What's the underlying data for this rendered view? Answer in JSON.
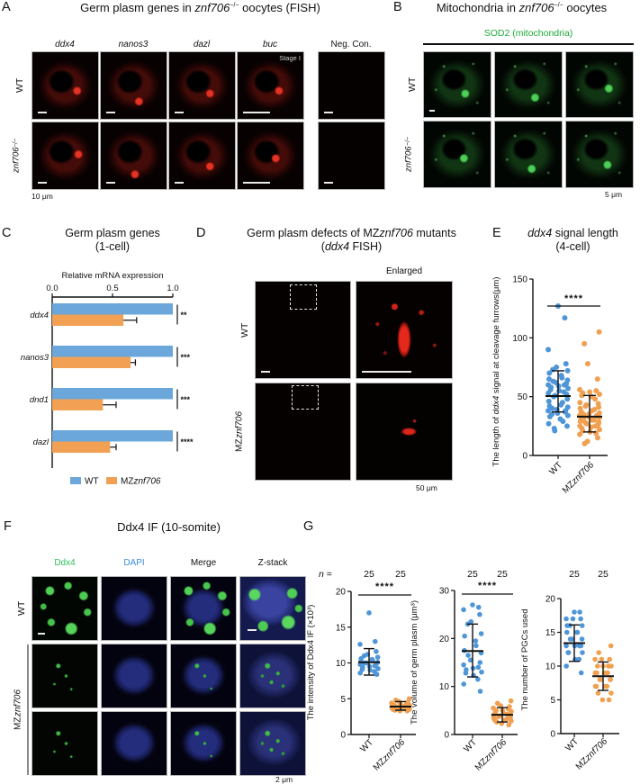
{
  "colors": {
    "wt_blue": "#6BA7DB",
    "mz_orange": "#F2A154",
    "point_blue": "#4F96D8",
    "point_orange": "#F0A050",
    "green_label": "#1FA83C",
    "dapi_label": "#3A8FDE"
  },
  "panel_a": {
    "label": "A",
    "title_parts": [
      "Germ plasm genes in ",
      "znf706",
      "−/−",
      " oocytes (FISH)"
    ],
    "col_labels": [
      "ddx4",
      "nanos3",
      "dazl",
      "buc",
      "Neg. Con."
    ],
    "row_labels": {
      "wt": "WT",
      "mut": [
        "znf706",
        "−/−"
      ]
    },
    "stage": "Stage I",
    "scale": "10 μm"
  },
  "panel_b": {
    "label": "B",
    "title_parts": [
      "Mitochondria in ",
      "znf706",
      "−/−",
      " oocytes"
    ],
    "header": "SOD2 (mitochondria)",
    "row_labels": {
      "wt": "WT",
      "mut": [
        "znf706",
        "−/−"
      ]
    },
    "scale": "5 μm"
  },
  "panel_c": {
    "label": "C"
  },
  "panel_d": {
    "label": "D",
    "title1_parts": [
      "Germ plasm defects of MZ",
      "znf706",
      " mutants"
    ],
    "title2_parts": [
      "(",
      "ddx4",
      " FISH)"
    ],
    "enlarged": "Enlarged",
    "row_labels": {
      "wt": "WT",
      "mut": [
        "MZ",
        "znf706"
      ]
    },
    "scale": "50 μm"
  },
  "panel_e": {
    "label": "E"
  },
  "panel_f": {
    "label": "F",
    "title": "Ddx4 IF (10-somite)",
    "col_labels": [
      "Ddx4",
      "DAPI",
      "Merge",
      "Z-stack"
    ],
    "row_labels": {
      "wt": "WT",
      "mut": [
        "MZ",
        "znf706"
      ]
    },
    "scale": "2 μm"
  },
  "panel_g": {
    "label": "G"
  },
  "chart_data": [
    {
      "id": "panel-c",
      "type": "bar",
      "orientation": "horizontal",
      "title": "Germ plasm genes",
      "subtitle": "(1-cell)",
      "xlabel": "Relative mRNA expression",
      "xlim": [
        0,
        1
      ],
      "xticks": [
        0,
        0.5,
        1
      ],
      "categories": [
        "ddx4",
        "nanos3",
        "dnd1",
        "dazl"
      ],
      "series": [
        {
          "name_parts": [
            {
              "t": "WT",
              "i": false
            }
          ],
          "color": "#6BA7DB",
          "values": [
            1,
            1,
            1,
            1
          ]
        },
        {
          "name_parts": [
            {
              "t": "MZ",
              "i": false
            },
            {
              "t": "znf706",
              "i": true
            }
          ],
          "color": "#F2A154",
          "values": [
            0.59,
            0.65,
            0.42,
            0.48
          ],
          "errors": [
            0.11,
            0.04,
            0.11,
            0.05
          ]
        }
      ],
      "significance": [
        "**",
        "***",
        "***",
        "****"
      ],
      "legend_position": "bottom"
    },
    {
      "id": "panel-e",
      "type": "scatter",
      "title_parts": [
        {
          "t": "ddx4",
          "i": true
        },
        {
          "t": " signal length",
          "i": false
        }
      ],
      "subtitle": "(4-cell)",
      "ylabel_parts": [
        {
          "t": "The length of ",
          "i": false
        },
        {
          "t": "ddx4",
          "i": true
        },
        {
          "t": " signal at cleavage furrows(μm)",
          "i": false
        }
      ],
      "ylim": [
        0,
        150
      ],
      "yticks": [
        0,
        50,
        100,
        150
      ],
      "significance": "****",
      "groups": [
        {
          "name_parts": [
            {
              "t": "WT",
              "i": false
            }
          ],
          "color": "#4F96D8",
          "mean": 50.5,
          "low": 37,
          "high": 72,
          "values": [
            127,
            117,
            90,
            78,
            75,
            73,
            72,
            70,
            68,
            66,
            65,
            64,
            63,
            62,
            61,
            60,
            60,
            59,
            58,
            57,
            56,
            55,
            54,
            53,
            52,
            51,
            50,
            48,
            46,
            45,
            43,
            42,
            41,
            40,
            39,
            38,
            38,
            37,
            36,
            35,
            34,
            33,
            31,
            29,
            27,
            25,
            23,
            21
          ]
        },
        {
          "name_parts": [
            {
              "t": "MZ",
              "i": false
            },
            {
              "t": "znf706",
              "i": true
            }
          ],
          "color": "#F0A050",
          "mean": 33,
          "low": 20,
          "high": 51,
          "values": [
            105,
            95,
            78,
            65,
            56,
            55,
            54,
            53,
            52,
            51,
            50,
            48,
            45,
            44,
            43,
            42,
            41,
            40,
            39,
            38,
            37,
            36,
            35,
            35,
            34,
            34,
            33,
            33,
            32,
            32,
            31,
            30,
            30,
            29,
            28,
            28,
            27,
            26,
            25,
            25,
            24,
            23,
            22,
            21,
            20,
            19,
            18,
            15,
            12,
            10
          ]
        }
      ]
    },
    {
      "id": "panel-g1",
      "type": "scatter",
      "ylabel_parts": [
        {
          "t": "The intensity of Ddx4 IF (×10³)",
          "i": false
        }
      ],
      "ylim": [
        0,
        20
      ],
      "yticks": [
        0,
        5,
        10,
        15,
        20
      ],
      "n_prefix": "n =",
      "n": [
        "25",
        "25"
      ],
      "significance": "****",
      "groups": [
        {
          "name_parts": [
            {
              "t": "WT",
              "i": false
            }
          ],
          "color": "#4F96D8",
          "mean": 10.1,
          "low": 8.3,
          "high": 12,
          "values": [
            17,
            13,
            12.6,
            11.6,
            11.2,
            11,
            10.8,
            10.6,
            10.5,
            10.4,
            10.2,
            10.1,
            10,
            10,
            9.9,
            9.8,
            9.6,
            9.5,
            9.4,
            9.2,
            9.1,
            9,
            8.8,
            8.6,
            8.4
          ]
        },
        {
          "name_parts": [
            {
              "t": "MZ",
              "i": false
            },
            {
              "t": "znf706",
              "i": true
            }
          ],
          "color": "#F0A050",
          "mean": 3.9,
          "low": 3.4,
          "high": 4.6,
          "values": [
            5,
            4.8,
            4.6,
            4.5,
            4.4,
            4.3,
            4.2,
            4.1,
            4.1,
            4,
            4,
            3.9,
            3.9,
            3.8,
            3.8,
            3.8,
            3.7,
            3.7,
            3.6,
            3.6,
            3.5,
            3.5,
            3.4,
            3.3,
            3.3
          ]
        }
      ]
    },
    {
      "id": "panel-g2",
      "type": "scatter",
      "ylabel_parts": [
        {
          "t": "The volume of germ plasm (μm³)",
          "i": false
        }
      ],
      "ylim": [
        0,
        30
      ],
      "yticks": [
        0,
        10,
        20,
        30
      ],
      "n": [
        "25",
        "25"
      ],
      "significance": "****",
      "groups": [
        {
          "name_parts": [
            {
              "t": "WT",
              "i": false
            }
          ],
          "color": "#4F96D8",
          "mean": 17.4,
          "low": 12,
          "high": 23,
          "values": [
            27,
            26.5,
            26,
            25,
            23.5,
            23,
            21,
            20.5,
            19.5,
            18.5,
            17.5,
            17,
            16.5,
            15.5,
            15,
            14.5,
            14,
            13.8,
            13.5,
            13,
            12.8,
            12.3,
            11.5,
            10.5,
            9
          ]
        },
        {
          "name_parts": [
            {
              "t": "MZ",
              "i": false
            },
            {
              "t": "znf706",
              "i": true
            }
          ],
          "color": "#F0A050",
          "mean": 4.1,
          "low": 2.6,
          "high": 5.6,
          "values": [
            7,
            6.5,
            6,
            5.8,
            5.5,
            5.3,
            5,
            5,
            4.8,
            4.6,
            4.4,
            4.2,
            4,
            4,
            3.9,
            3.7,
            3.5,
            3.4,
            3.2,
            3,
            3,
            2.8,
            2.6,
            2.3,
            2
          ]
        }
      ]
    },
    {
      "id": "panel-g3",
      "type": "scatter",
      "ylabel_parts": [
        {
          "t": "The number of PGCs used",
          "i": false
        }
      ],
      "ylim": [
        0,
        20
      ],
      "yticks": [
        0,
        5,
        10,
        15,
        20
      ],
      "n": [
        "25",
        "25"
      ],
      "groups": [
        {
          "name_parts": [
            {
              "t": "WT",
              "i": false
            }
          ],
          "color": "#4F96D8",
          "mean": 13.4,
          "low": 10.7,
          "high": 16.1,
          "values": [
            18,
            18,
            17,
            17,
            17,
            16,
            16,
            16,
            15,
            15,
            15,
            14,
            14,
            14,
            13,
            13,
            13,
            13,
            12,
            12,
            12,
            11,
            11,
            10,
            9
          ]
        },
        {
          "name_parts": [
            {
              "t": "MZ",
              "i": false
            },
            {
              "t": "znf706",
              "i": true
            }
          ],
          "color": "#F0A050",
          "mean": 8.5,
          "low": 6.4,
          "high": 10.6,
          "values": [
            13,
            12,
            11,
            11,
            11,
            10,
            10,
            10,
            10,
            9,
            9,
            9,
            9,
            8,
            8,
            8,
            8,
            7,
            7,
            7,
            7,
            6,
            6,
            5,
            5
          ]
        }
      ]
    }
  ]
}
